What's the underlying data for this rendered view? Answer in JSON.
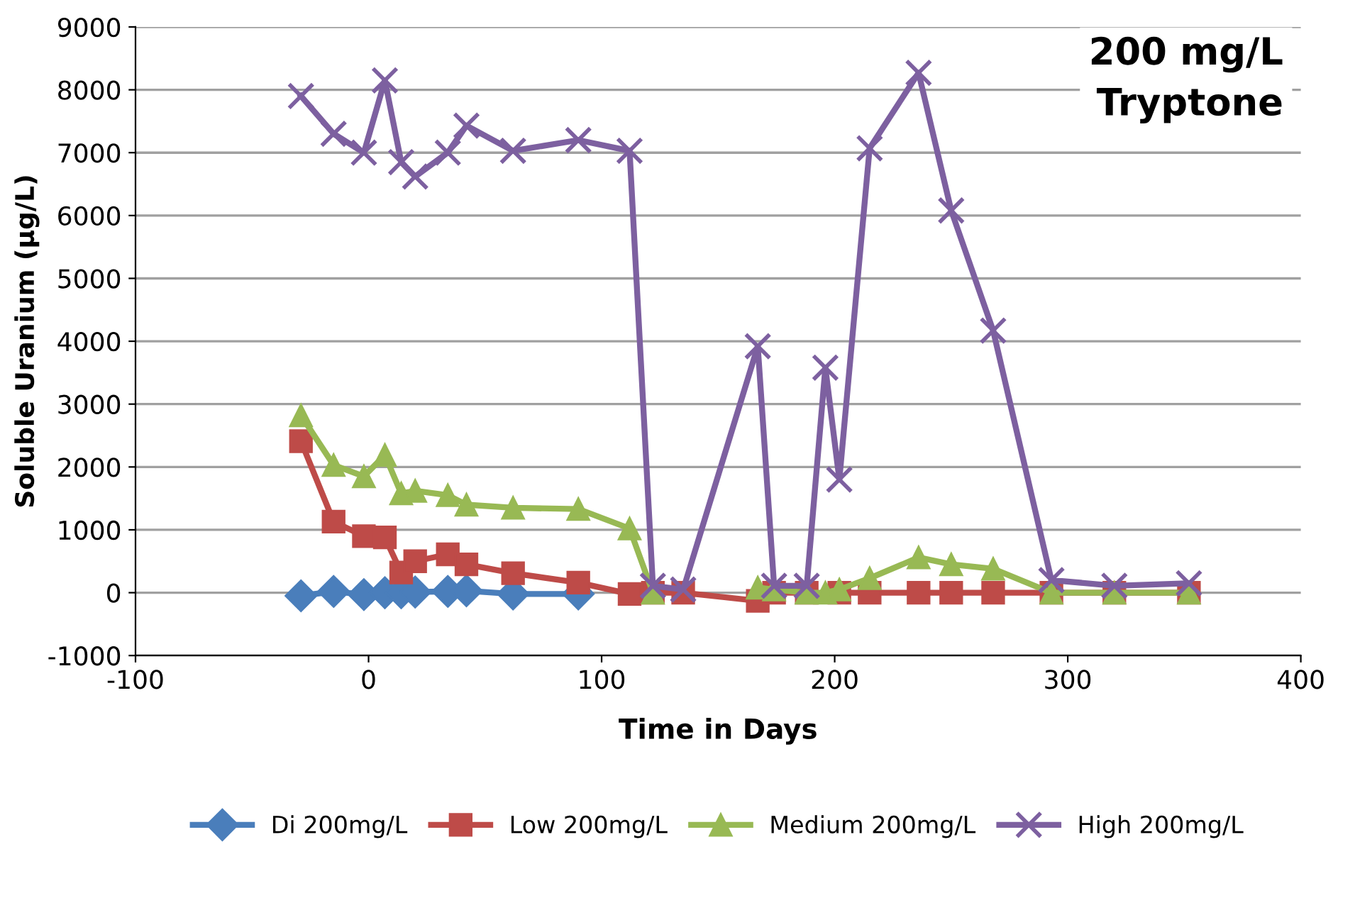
{
  "chart_data": {
    "type": "line",
    "xlabel": "Time in Days",
    "ylabel": "Soluble Uranium (µg/L)",
    "annotations": [
      "200 mg/L\nTryptone"
    ],
    "x": [
      -29,
      -15,
      -2,
      7,
      14,
      20,
      34,
      42,
      62,
      90,
      112,
      122,
      135,
      167,
      174,
      188,
      196,
      202,
      215,
      236,
      250,
      268,
      293,
      320,
      352
    ],
    "series": [
      {
        "name": "Di 200mg/L",
        "color": "#4a7ebb",
        "marker": "diamond",
        "x": [
          -29,
          -15,
          -2,
          7,
          14,
          20,
          34,
          42,
          62,
          90
        ],
        "values": [
          -50,
          20,
          -30,
          0,
          0,
          10,
          20,
          30,
          -20,
          -20
        ]
      },
      {
        "name": "Low 200mg/L",
        "color": "#be4b48",
        "marker": "square",
        "values": [
          2410,
          1130,
          900,
          880,
          320,
          500,
          610,
          450,
          310,
          160,
          -20,
          0,
          0,
          -130,
          0,
          0,
          null,
          0,
          0,
          0,
          0,
          0,
          0,
          0,
          0
        ]
      },
      {
        "name": "Medium 200mg/L",
        "color": "#98b954",
        "marker": "triangle",
        "values": [
          2820,
          2030,
          1850,
          2190,
          1580,
          1620,
          1550,
          1400,
          1350,
          1330,
          1020,
          0,
          null,
          80,
          50,
          0,
          0,
          50,
          230,
          560,
          450,
          380,
          0,
          0,
          0
        ]
      },
      {
        "name": "High 200mg/L",
        "color": "#7d60a0",
        "marker": "cross",
        "values": [
          7900,
          7300,
          7000,
          8150,
          6850,
          6620,
          7000,
          7430,
          7030,
          7200,
          7030,
          110,
          50,
          3920,
          110,
          110,
          3580,
          1800,
          7070,
          8270,
          6080,
          4170,
          200,
          110,
          150
        ]
      }
    ],
    "xlim": [
      -100,
      400
    ],
    "xticks": [
      -100,
      0,
      100,
      200,
      300,
      400
    ],
    "ylim": [
      -1000,
      9000
    ],
    "yticks": [
      -1000,
      0,
      1000,
      2000,
      3000,
      4000,
      5000,
      6000,
      7000,
      8000,
      9000
    ],
    "grid": "y",
    "legend": "bottom",
    "line_style": "solid"
  }
}
